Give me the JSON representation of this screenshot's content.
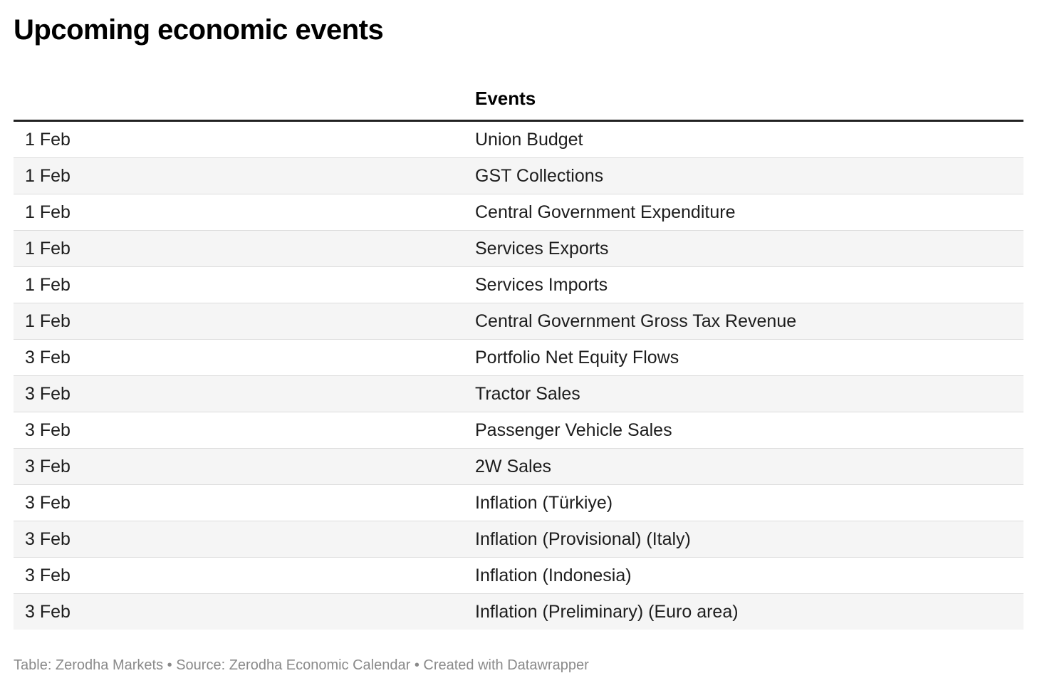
{
  "title": "Upcoming economic events",
  "table": {
    "headers": [
      "",
      "Events"
    ],
    "rows": [
      {
        "date": "1 Feb",
        "event": "Union Budget"
      },
      {
        "date": "1 Feb",
        "event": "GST Collections"
      },
      {
        "date": "1 Feb",
        "event": "Central Government Expenditure"
      },
      {
        "date": "1 Feb",
        "event": "Services Exports"
      },
      {
        "date": "1 Feb",
        "event": "Services Imports"
      },
      {
        "date": "1 Feb",
        "event": "Central Government Gross Tax Revenue"
      },
      {
        "date": "3 Feb",
        "event": "Portfolio Net Equity Flows"
      },
      {
        "date": "3 Feb",
        "event": "Tractor Sales"
      },
      {
        "date": "3 Feb",
        "event": "Passenger Vehicle Sales"
      },
      {
        "date": "3 Feb",
        "event": "2W Sales"
      },
      {
        "date": "3 Feb",
        "event": "Inflation (Türkiye)"
      },
      {
        "date": "3 Feb",
        "event": "Inflation (Provisional) (Italy)"
      },
      {
        "date": "3 Feb",
        "event": "Inflation (Indonesia)"
      },
      {
        "date": "3 Feb",
        "event": "Inflation (Preliminary) (Euro area)"
      }
    ]
  },
  "footer": "Table: Zerodha Markets • Source: Zerodha Economic Calendar • Created with Datawrapper"
}
